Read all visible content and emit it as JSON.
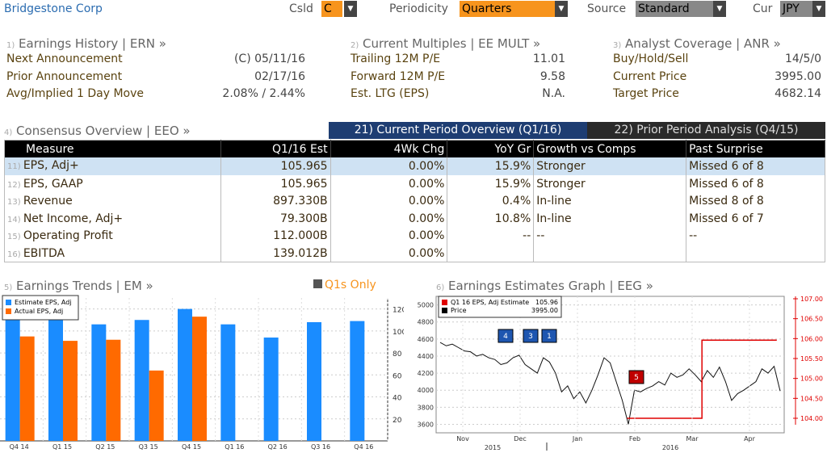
{
  "header": {
    "company": "Bridgestone Corp",
    "csld_label": "Csld",
    "csld_value": "C",
    "periodicity_label": "Periodicity",
    "periodicity_value": "Quarters",
    "source_label": "Source",
    "source_value": "Standard",
    "cur_label": "Cur",
    "cur_value": "JPY"
  },
  "earnings_history": {
    "num": "1)",
    "title": "Earnings History | ERN »",
    "rows": [
      {
        "label": "Next Announcement",
        "value": "(C)  05/11/16"
      },
      {
        "label": "Prior Announcement",
        "value": "02/17/16"
      },
      {
        "label": "Avg/Implied 1 Day Move",
        "value": "2.08% / 2.44%"
      }
    ]
  },
  "current_multiples": {
    "num": "2)",
    "title": "Current Multiples | EE MULT »",
    "rows": [
      {
        "label": "Trailing 12M P/E",
        "value": "11.01"
      },
      {
        "label": "Forward 12M P/E",
        "value": "9.58"
      },
      {
        "label": "Est. LTG (EPS)",
        "value": "N.A."
      }
    ]
  },
  "analyst_coverage": {
    "num": "3)",
    "title": "Analyst Coverage | ANR »",
    "rows": [
      {
        "label": "Buy/Hold/Sell",
        "value": "14/5/0"
      },
      {
        "label": "Current Price",
        "value": "3995.00"
      },
      {
        "label": "Target Price",
        "value": "4682.14"
      }
    ]
  },
  "consensus": {
    "num": "4)",
    "title": "Consensus Overview | EEO »",
    "tab_current": "21) Current Period Overview (Q1/16)",
    "tab_prior": "22) Prior Period Analysis (Q4/15)",
    "headers": [
      "Measure",
      "Q1/16 Est",
      "4Wk Chg",
      "YoY Gr",
      "Growth vs Comps",
      "Past Surprise"
    ],
    "rows": [
      {
        "num": "11)",
        "measure": "EPS, Adj+",
        "est": "105.965",
        "chg": "0.00%",
        "yoy": "15.9%",
        "growth": "Stronger",
        "surprise": "Missed 6 of 8"
      },
      {
        "num": "12)",
        "measure": "EPS, GAAP",
        "est": "105.965",
        "chg": "0.00%",
        "yoy": "15.9%",
        "growth": "Stronger",
        "surprise": "Missed 6 of 8"
      },
      {
        "num": "13)",
        "measure": "Revenue",
        "est": "897.330B",
        "chg": "0.00%",
        "yoy": "0.4%",
        "growth": "In-line",
        "surprise": "Missed 8 of 8"
      },
      {
        "num": "14)",
        "measure": "Net Income, Adj+",
        "est": "79.300B",
        "chg": "0.00%",
        "yoy": "10.8%",
        "growth": "In-line",
        "surprise": "Missed 6 of 7"
      },
      {
        "num": "15)",
        "measure": "Operating Profit",
        "est": "112.000B",
        "chg": "0.00%",
        "yoy": "--",
        "growth": "--",
        "surprise": "--"
      },
      {
        "num": "16)",
        "measure": "EBITDA",
        "est": "139.012B",
        "chg": "0.00%",
        "yoy": "",
        "growth": "",
        "surprise": ""
      }
    ]
  },
  "trends": {
    "num": "5)",
    "title": "Earnings Trends | EM »",
    "q1s_label": "Q1s Only"
  },
  "estimates": {
    "num": "6)",
    "title": "Earnings Estimates Graph | EEG »"
  },
  "chart_data": [
    {
      "type": "bar",
      "categories": [
        "Q4 14",
        "Q1 15",
        "Q2 15",
        "Q3 15",
        "Q4 15",
        "Q1 16",
        "Q2 16",
        "Q3 16",
        "Q4 16"
      ],
      "series": [
        {
          "name": "Estimate EPS, Adj",
          "color": "#1a8cff",
          "values": [
            112,
            111,
            106,
            110,
            120,
            106,
            94,
            108,
            109
          ]
        },
        {
          "name": "Actual EPS, Adj",
          "color": "#ff6a00",
          "values": [
            95,
            91,
            92,
            64,
            113,
            null,
            null,
            null,
            null
          ]
        }
      ],
      "ylim": [
        0,
        130
      ],
      "yticks": [
        20,
        40,
        60,
        80,
        100,
        120
      ]
    },
    {
      "type": "line",
      "left_axis": {
        "ylim": [
          3500,
          5100
        ],
        "ticks": [
          3600,
          3800,
          4000,
          4200,
          4400,
          4600,
          4800,
          5000
        ]
      },
      "right_axis": {
        "ticks": [
          "104.00",
          "104.50",
          "105.00",
          "105.50",
          "106.00",
          "106.50",
          "107.00"
        ]
      },
      "x_labels": [
        "Nov",
        "Dec",
        "Jan",
        "Feb",
        "Mar",
        "Apr"
      ],
      "year_labels": [
        "2015",
        "2016"
      ],
      "legend": [
        {
          "name": "Q1 16 EPS, Adj Estimate",
          "value": "105.96",
          "color": "#e00000"
        },
        {
          "name": "Price",
          "value": "3995.00",
          "color": "#000"
        }
      ],
      "markers": [
        "4",
        "3",
        "1",
        "5"
      ],
      "price": [
        4560,
        4520,
        4540,
        4500,
        4460,
        4450,
        4400,
        4420,
        4380,
        4360,
        4300,
        4320,
        4380,
        4410,
        4300,
        4250,
        4200,
        4380,
        4330,
        4200,
        3980,
        4050,
        3900,
        3980,
        3850,
        4000,
        4180,
        4380,
        4320,
        4100,
        3880,
        3600,
        4000,
        3980,
        4020,
        4050,
        4100,
        4060,
        4200,
        4150,
        4180,
        4250,
        4180,
        4100,
        4230,
        4150,
        4270,
        4100,
        3880,
        3960,
        4000,
        4050,
        4100,
        4250,
        4200,
        4280,
        3990
      ],
      "estimate": [
        {
          "x": 0.0,
          "y": 104.0
        },
        {
          "x": 0.34,
          "y": 104.0
        },
        {
          "x": 0.34,
          "y": 105.96
        },
        {
          "x": 0.6,
          "y": 105.96
        }
      ]
    }
  ]
}
